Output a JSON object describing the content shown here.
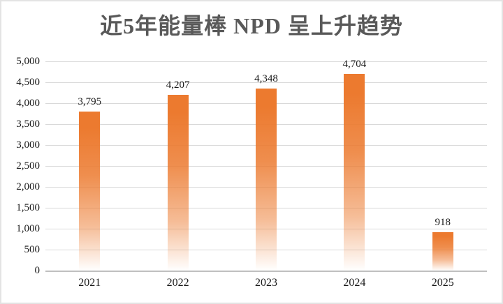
{
  "chart_data": {
    "type": "bar",
    "title": "近5年能量棒 NPD 呈上升趋势",
    "categories": [
      "2021",
      "2022",
      "2023",
      "2024",
      "2025"
    ],
    "values": [
      3795,
      4207,
      4348,
      4704,
      918
    ],
    "value_labels": [
      "3,795",
      "4,207",
      "4,348",
      "4,704",
      "918"
    ],
    "ylim": [
      0,
      5000
    ],
    "ytick_interval": 500,
    "ytick_labels": [
      "0",
      "500",
      "1,000",
      "1,500",
      "2,000",
      "2,500",
      "3,000",
      "3,500",
      "4,000",
      "4,500",
      "5,000"
    ],
    "xlabel": "",
    "ylabel": "",
    "grid": true,
    "legend": false
  },
  "colors": {
    "bar": "#EC7A2F",
    "gridline": "#D9D9D9",
    "axis_line": "#BFBFBF",
    "title_text": "#595959",
    "tick_text": "#1A1A1A",
    "frame_border": "#E3E3E3",
    "background": "#FFFFFF"
  }
}
